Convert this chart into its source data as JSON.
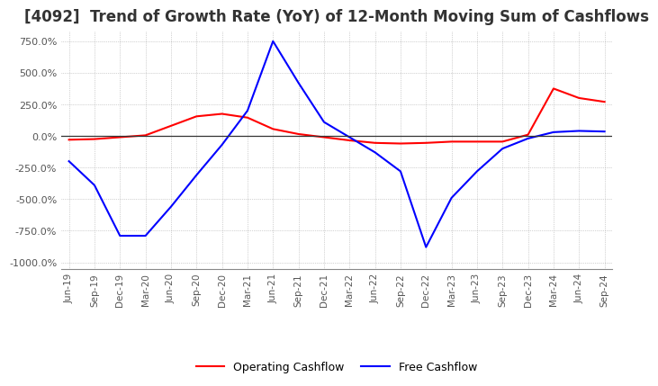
{
  "title": "[4092]  Trend of Growth Rate (YoY) of 12-Month Moving Sum of Cashflows",
  "title_fontsize": 12,
  "ylim": [
    -1050,
    830
  ],
  "yticks": [
    750.0,
    500.0,
    250.0,
    0.0,
    -250.0,
    -500.0,
    -750.0,
    -1000.0
  ],
  "background_color": "#ffffff",
  "grid_color": "#aaaaaa",
  "x_labels": [
    "Jun-19",
    "Sep-19",
    "Dec-19",
    "Mar-20",
    "Jun-20",
    "Sep-20",
    "Dec-20",
    "Mar-21",
    "Jun-21",
    "Sep-21",
    "Dec-21",
    "Mar-22",
    "Jun-22",
    "Sep-22",
    "Dec-22",
    "Mar-23",
    "Jun-23",
    "Sep-23",
    "Dec-23",
    "Mar-24",
    "Jun-24",
    "Sep-24"
  ],
  "operating_cashflow": [
    -30,
    -25,
    -10,
    5,
    80,
    155,
    175,
    145,
    55,
    15,
    -10,
    -35,
    -55,
    -60,
    -55,
    -45,
    -45,
    -45,
    10,
    375,
    300,
    270
  ],
  "free_cashflow": [
    -200,
    -390,
    -790,
    -790,
    -560,
    -310,
    -70,
    200,
    750,
    420,
    110,
    -10,
    -130,
    -280,
    -880,
    -490,
    -280,
    -100,
    -20,
    30,
    40,
    35
  ],
  "operating_color": "#ff0000",
  "free_color": "#0000ff",
  "legend_labels": [
    "Operating Cashflow",
    "Free Cashflow"
  ]
}
